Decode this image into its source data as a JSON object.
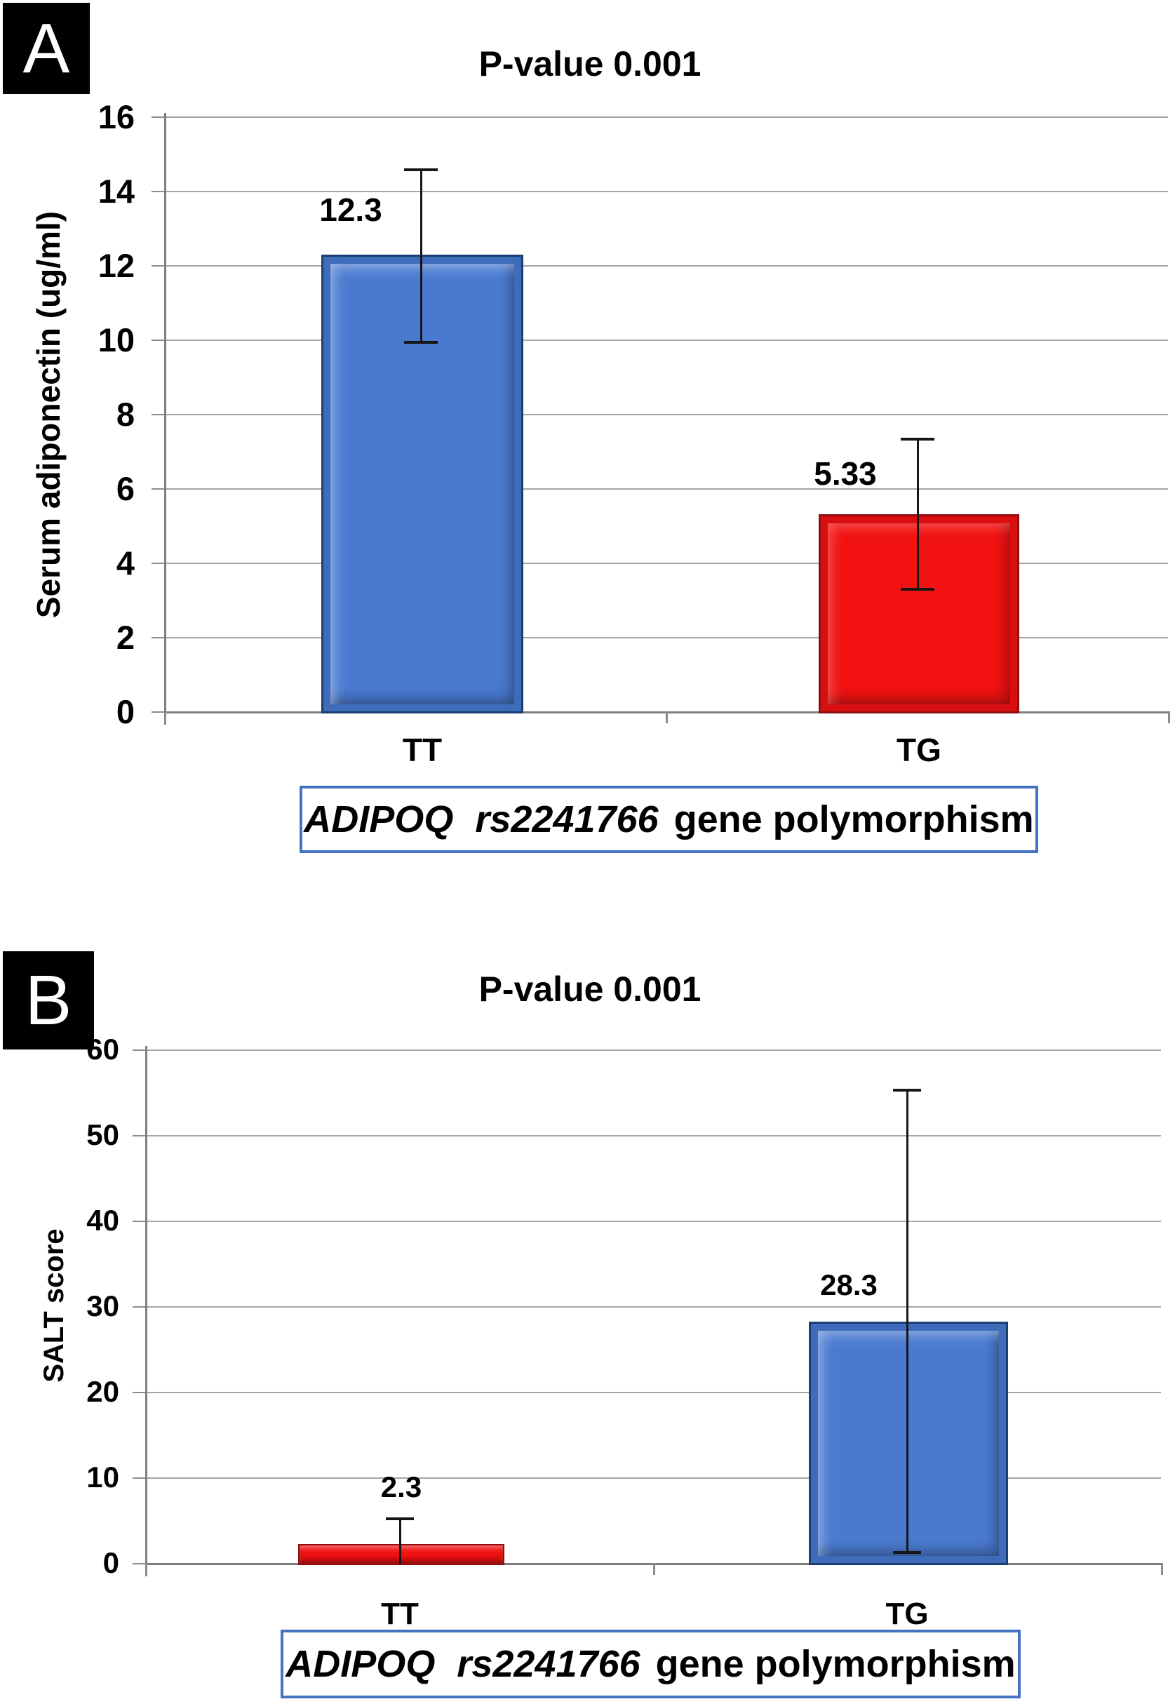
{
  "colors": {
    "bar_blue": "#4a7ad0",
    "bar_red": "#f21212",
    "box_border_blue": "#4472c4",
    "gridline_gray": "#a6a6a6",
    "axis_gray": "#7f7f7f",
    "error_bar_black": "#161616"
  },
  "chart_data": [
    {
      "type": "bar",
      "panel": "A",
      "title": "P-value 0.001",
      "categories": [
        "TT",
        "TG"
      ],
      "values": [
        12.3,
        5.33
      ],
      "bar_labels": [
        "12.3",
        "5.33"
      ],
      "bar_colors": [
        "blue",
        "red"
      ],
      "error_low": [
        9.95,
        3.3
      ],
      "error_high": [
        14.6,
        7.35
      ],
      "yticks": [
        "16",
        "14",
        "12",
        "10",
        "8",
        "6",
        "4",
        "2",
        "0"
      ],
      "ylim": [
        0,
        16
      ],
      "ytick_step": 2,
      "ylabel": "Serum adiponectin (ug/ml)",
      "xlabel_italic": "ADIPOQ rs2241766",
      "xlabel_regular": "gene polymorphism",
      "grid": true,
      "legend": false
    },
    {
      "type": "bar",
      "panel": "B",
      "title": "P-value 0.001",
      "categories": [
        "TT",
        "TG"
      ],
      "values": [
        2.3,
        28.3
      ],
      "bar_labels": [
        "2.3",
        "28.3"
      ],
      "bar_colors": [
        "red",
        "blue"
      ],
      "error_low": [
        0,
        1.3
      ],
      "error_high": [
        5.3,
        55.4
      ],
      "yticks": [
        "60",
        "50",
        "40",
        "30",
        "20",
        "10",
        "0"
      ],
      "ylim": [
        0,
        60
      ],
      "ytick_step": 10,
      "ylabel": "SALT score",
      "xlabel_italic": "ADIPOQ rs2241766",
      "xlabel_regular": "gene polymorphism",
      "grid": true,
      "legend": false
    }
  ]
}
